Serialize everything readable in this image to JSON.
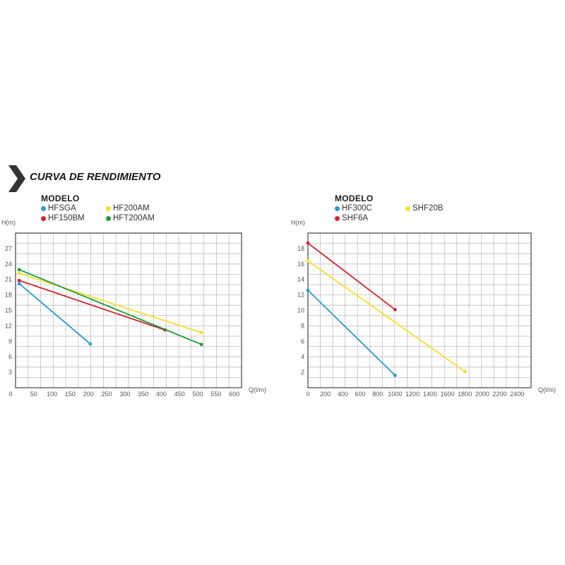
{
  "header": {
    "title": "CURVA DE RENDIMIENTO"
  },
  "legend1": {
    "title": "MODELO",
    "items": [
      {
        "label": "HFSGA",
        "color": "#2a9ad0"
      },
      {
        "label": "HF200AM",
        "color": "#f5e02a"
      },
      {
        "label": "HF150BM",
        "color": "#d42230"
      },
      {
        "label": "HFT200AM",
        "color": "#1f9a3c"
      }
    ]
  },
  "legend2": {
    "title": "MODELO",
    "items": [
      {
        "label": "HF300C",
        "color": "#2a9ad0"
      },
      {
        "label": "SHF20B",
        "color": "#f5e02a"
      },
      {
        "label": "SHF6A",
        "color": "#d42230"
      }
    ]
  },
  "chart_data": [
    {
      "type": "line",
      "xlabel": "Q(l/m)",
      "ylabel": "H(m)",
      "xlim": [
        0,
        620
      ],
      "ylim": [
        0,
        30
      ],
      "xticks": [
        0,
        50,
        100,
        150,
        200,
        250,
        300,
        350,
        400,
        450,
        500,
        550,
        600
      ],
      "yticks": [
        3,
        6,
        9,
        12,
        15,
        18,
        21,
        24,
        27
      ],
      "grid": true,
      "series": [
        {
          "name": "HFSGA",
          "color": "#2a9ad0",
          "points": [
            [
              10,
              20.2
            ],
            [
              205,
              8.5
            ]
          ]
        },
        {
          "name": "HF200AM",
          "color": "#f5e02a",
          "points": [
            [
              10,
              22.2
            ],
            [
              510,
              10.7
            ]
          ]
        },
        {
          "name": "HF150BM",
          "color": "#d42230",
          "points": [
            [
              10,
              20.8
            ],
            [
              410,
              11.2
            ]
          ]
        },
        {
          "name": "HFT200AM",
          "color": "#1f9a3c",
          "points": [
            [
              10,
              22.9
            ],
            [
              510,
              8.4
            ]
          ]
        }
      ]
    },
    {
      "type": "line",
      "xlabel": "Q(l/m)",
      "ylabel": "H(m)",
      "xlim": [
        0,
        2560
      ],
      "ylim": [
        0,
        20
      ],
      "xticks": [
        0,
        200,
        400,
        600,
        800,
        1000,
        1200,
        1400,
        1600,
        1800,
        2000,
        2200,
        2400
      ],
      "yticks": [
        2,
        4,
        6,
        8,
        10,
        12,
        14,
        16,
        18
      ],
      "grid": true,
      "series": [
        {
          "name": "HF300C",
          "color": "#2a9ad0",
          "points": [
            [
              0,
              12.6
            ],
            [
              1000,
              1.6
            ]
          ]
        },
        {
          "name": "SHF20B",
          "color": "#f5e02a",
          "points": [
            [
              0,
              16.4
            ],
            [
              1800,
              2.1
            ]
          ]
        },
        {
          "name": "SHF6A",
          "color": "#d42230",
          "points": [
            [
              0,
              18.7
            ],
            [
              1000,
              10.1
            ]
          ]
        }
      ]
    }
  ]
}
